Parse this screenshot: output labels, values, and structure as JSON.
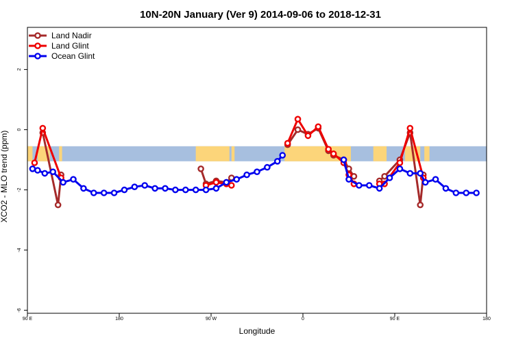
{
  "chart_data": {
    "type": "line",
    "title": "10N-20N January (Ver 9)   2014-09-06 to 2018-12-31",
    "xlabel": "Longitude",
    "ylabel": "XCO2 - MLO trend (ppm)",
    "xlim": [
      0,
      45
    ],
    "ylim": [
      -6.1,
      3.4
    ],
    "x_ticks": [
      {
        "pos": 0,
        "label": "90 E"
      },
      {
        "pos": 9,
        "label": "180"
      },
      {
        "pos": 18,
        "label": "90 W"
      },
      {
        "pos": 27,
        "label": "0"
      },
      {
        "pos": 36,
        "label": "90 E"
      },
      {
        "pos": 45,
        "label": "180"
      }
    ],
    "y_ticks": [
      {
        "value": 2,
        "label": "2"
      },
      {
        "value": 0,
        "label": "0"
      },
      {
        "value": -2,
        "label": "-2"
      },
      {
        "value": -4,
        "label": "-4"
      },
      {
        "value": -6,
        "label": "-6"
      }
    ],
    "legend_position": "top-left",
    "series": [
      {
        "name": "Land Nadir",
        "color": "#a52a2a",
        "segments": [
          [
            [
              1.5,
              -0.1
            ],
            [
              3.0,
              -2.5
            ],
            [
              3.3,
              -1.5
            ]
          ],
          [
            [
              17.0,
              -1.3
            ],
            [
              17.5,
              -1.8
            ],
            [
              18.5,
              -1.7
            ],
            [
              19.5,
              -1.75
            ],
            [
              20.0,
              -1.6
            ]
          ],
          [
            [
              25.5,
              -0.5
            ],
            [
              26.5,
              0.0
            ],
            [
              27.5,
              -0.15
            ],
            [
              28.5,
              0.05
            ],
            [
              29.5,
              -0.7
            ],
            [
              30.0,
              -0.85
            ],
            [
              31.0,
              -1.0
            ],
            [
              31.5,
              -1.3
            ],
            [
              32.0,
              -1.55
            ]
          ],
          [
            [
              34.5,
              -1.7
            ],
            [
              35.0,
              -1.55
            ],
            [
              36.5,
              -1.0
            ],
            [
              37.5,
              -0.1
            ],
            [
              38.5,
              -2.5
            ],
            [
              38.8,
              -1.5
            ]
          ]
        ]
      },
      {
        "name": "Land Glint",
        "color": "#ee0000",
        "segments": [
          [
            [
              0.7,
              -1.1
            ],
            [
              1.5,
              0.05
            ],
            [
              3.3,
              -1.6
            ]
          ],
          [
            [
              17.5,
              -1.85
            ],
            [
              18.5,
              -1.75
            ],
            [
              19.5,
              -1.8
            ],
            [
              20.0,
              -1.85
            ]
          ],
          [
            [
              25.5,
              -0.45
            ],
            [
              26.5,
              0.35
            ],
            [
              27.5,
              -0.2
            ],
            [
              28.5,
              0.1
            ],
            [
              29.5,
              -0.65
            ],
            [
              30.0,
              -0.8
            ],
            [
              31.0,
              -1.1
            ],
            [
              31.5,
              -1.5
            ],
            [
              32.0,
              -1.8
            ]
          ],
          [
            [
              34.5,
              -1.8
            ],
            [
              35.0,
              -1.8
            ],
            [
              36.5,
              -1.1
            ],
            [
              37.5,
              0.05
            ],
            [
              38.8,
              -1.6
            ]
          ]
        ]
      },
      {
        "name": "Ocean Glint",
        "color": "#0000ee",
        "segments": [
          [
            [
              0.5,
              -1.3
            ],
            [
              1.0,
              -1.35
            ],
            [
              1.7,
              -1.45
            ],
            [
              2.5,
              -1.4
            ],
            [
              3.5,
              -1.75
            ],
            [
              4.5,
              -1.65
            ],
            [
              5.5,
              -1.95
            ],
            [
              6.5,
              -2.1
            ],
            [
              7.5,
              -2.1
            ],
            [
              8.5,
              -2.1
            ],
            [
              9.5,
              -2.0
            ],
            [
              10.5,
              -1.9
            ],
            [
              11.5,
              -1.85
            ],
            [
              12.5,
              -1.95
            ],
            [
              13.5,
              -1.95
            ],
            [
              14.5,
              -2.0
            ],
            [
              15.5,
              -2.0
            ],
            [
              16.5,
              -2.0
            ],
            [
              17.5,
              -2.0
            ],
            [
              18.5,
              -1.95
            ],
            [
              19.5,
              -1.75
            ],
            [
              20.5,
              -1.65
            ],
            [
              21.5,
              -1.5
            ],
            [
              22.5,
              -1.4
            ],
            [
              23.5,
              -1.25
            ],
            [
              24.5,
              -1.05
            ],
            [
              25.0,
              -0.85
            ]
          ],
          [
            [
              31.0,
              -1.0
            ],
            [
              31.5,
              -1.65
            ],
            [
              32.5,
              -1.85
            ],
            [
              33.5,
              -1.85
            ],
            [
              34.5,
              -1.95
            ],
            [
              35.5,
              -1.6
            ],
            [
              36.5,
              -1.3
            ],
            [
              37.5,
              -1.45
            ],
            [
              38.5,
              -1.45
            ],
            [
              39.0,
              -1.75
            ],
            [
              40.0,
              -1.65
            ],
            [
              41.0,
              -1.95
            ],
            [
              42.0,
              -2.1
            ],
            [
              43.0,
              -2.1
            ],
            [
              44.0,
              -2.1
            ]
          ]
        ]
      }
    ]
  },
  "land_strip": {
    "ocean_color": "#a7bfdf",
    "land_color": "#fcd57a",
    "y_top": -0.55,
    "y_bottom": -1.05,
    "land_ranges": [
      [
        0.0,
        0.5
      ],
      [
        1.0,
        2.2
      ],
      [
        3.1,
        3.4
      ],
      [
        16.5,
        19.8
      ],
      [
        20.0,
        20.3
      ],
      [
        25.2,
        31.7
      ],
      [
        33.9,
        35.2
      ],
      [
        37.0,
        38.5
      ],
      [
        38.9,
        39.4
      ]
    ]
  }
}
